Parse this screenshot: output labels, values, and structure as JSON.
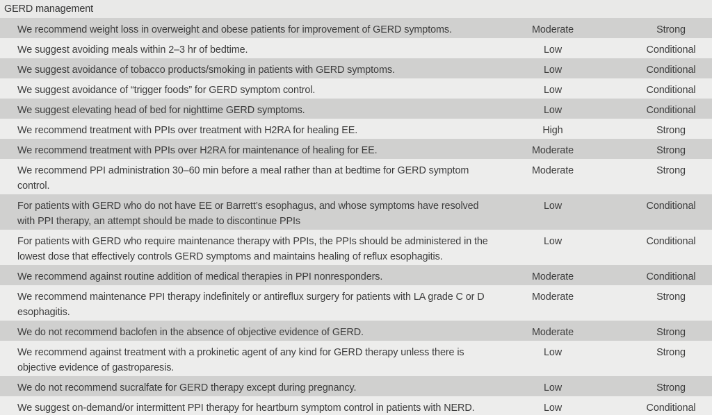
{
  "section_title": "GERD management",
  "rows": [
    {
      "text": "We recommend weight loss in overweight and obese patients for improvement of GERD symptoms.",
      "quality": "Moderate",
      "strength": "Strong",
      "lines": 1
    },
    {
      "text": "We suggest avoiding meals within 2–3 hr of bedtime.",
      "quality": "Low",
      "strength": "Conditional",
      "lines": 1
    },
    {
      "text": "We suggest avoidance of tobacco products/smoking in patients with GERD symptoms.",
      "quality": "Low",
      "strength": "Conditional",
      "lines": 1
    },
    {
      "text": "We suggest avoidance of “trigger foods” for GERD symptom control.",
      "quality": "Low",
      "strength": "Conditional",
      "lines": 1
    },
    {
      "text": "We suggest elevating head of bed for nighttime GERD symptoms.",
      "quality": "Low",
      "strength": "Conditional",
      "lines": 1
    },
    {
      "text": "We recommend treatment with PPIs over treatment with H2RA for healing EE.",
      "quality": "High",
      "strength": "Strong",
      "lines": 1
    },
    {
      "text": "We recommend treatment with PPIs over H2RA for maintenance of healing for EE.",
      "quality": "Moderate",
      "strength": "Strong",
      "lines": 1
    },
    {
      "text": "We recommend PPI administration 30–60 min before a meal rather than at bedtime for GERD symptom control.",
      "quality": "Moderate",
      "strength": "Strong",
      "lines": 2
    },
    {
      "text": "For patients with GERD who do not have EE or Barrett’s esophagus, and whose symptoms have resolved with PPI therapy, an attempt should be made to discontinue PPIs",
      "quality": "Low",
      "strength": "Conditional",
      "lines": 2
    },
    {
      "text": "For patients with GERD who require maintenance therapy with PPIs, the PPIs should be administered in the lowest dose that effectively controls GERD symptoms and maintains healing of reflux esophagitis.",
      "quality": "Low",
      "strength": "Conditional",
      "lines": 2
    },
    {
      "text": "We recommend against routine addition of medical therapies in PPI nonresponders.",
      "quality": "Moderate",
      "strength": "Conditional",
      "lines": 1
    },
    {
      "text": "We recommend maintenance PPI therapy indefinitely or antireflux surgery for patients with LA grade C or D esophagitis.",
      "quality": "Moderate",
      "strength": "Strong",
      "lines": 2
    },
    {
      "text": "We do not recommend baclofen in the absence of objective evidence of GERD.",
      "quality": "Moderate",
      "strength": "Strong",
      "lines": 1
    },
    {
      "text": "We recommend against treatment with a prokinetic agent of any kind for GERD therapy unless there is objective evidence of gastroparesis.",
      "quality": "Low",
      "strength": "Strong",
      "lines": 2
    },
    {
      "text": "We do not recommend sucralfate for GERD therapy except during pregnancy.",
      "quality": "Low",
      "strength": "Strong",
      "lines": 1
    },
    {
      "text": "We suggest on-demand/or intermittent PPI therapy for heartburn symptom control in patients with NERD.",
      "quality": "Low",
      "strength": "Conditional",
      "lines": 1
    }
  ]
}
